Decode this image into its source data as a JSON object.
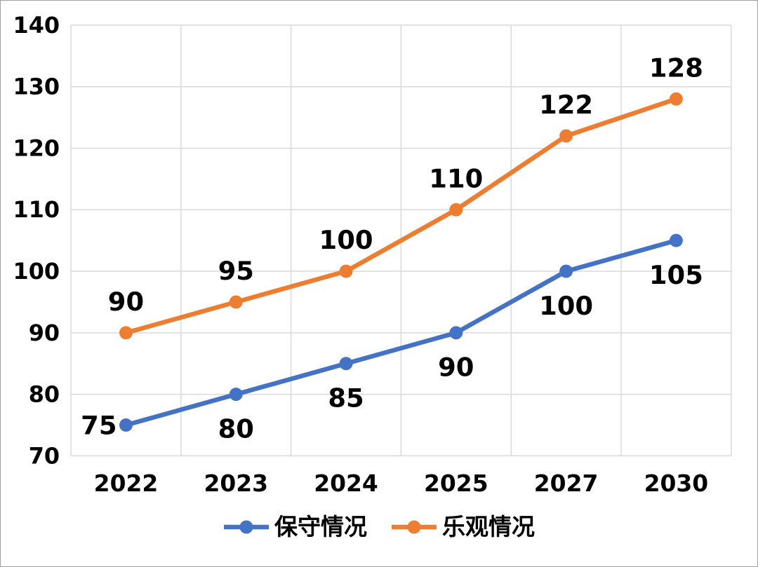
{
  "chart_data": {
    "type": "line",
    "categories": [
      "2022",
      "2023",
      "2024",
      "2025",
      "2027",
      "2030"
    ],
    "series": [
      {
        "name": "保守情况",
        "color": "#4472C4",
        "values": [
          75,
          80,
          85,
          90,
          100,
          105
        ],
        "data_labels": [
          "75",
          "80",
          "85",
          "90",
          "100",
          "105"
        ],
        "label_position": "below",
        "label_overrides": {
          "0": "left"
        }
      },
      {
        "name": "乐观情况",
        "color": "#ED7D31",
        "values": [
          90,
          95,
          100,
          110,
          122,
          128
        ],
        "data_labels": [
          "90",
          "95",
          "100",
          "110",
          "122",
          "128"
        ],
        "label_position": "above",
        "label_overrides": {}
      }
    ],
    "title": "",
    "xlabel": "",
    "ylabel": "",
    "ylim": [
      70,
      140
    ],
    "yticks": [
      70,
      80,
      90,
      100,
      110,
      120,
      130,
      140
    ],
    "ytick_labels": [
      "70",
      "80",
      "90",
      "100",
      "110",
      "120",
      "130",
      "140"
    ],
    "grid": true,
    "legend_position": "bottom",
    "colors": {
      "gridline": "#D9D9D9",
      "axis_text": "#000000",
      "data_label_text": "#000000",
      "background": "#FFFFFF",
      "outer_border": "#9E9E9E"
    }
  }
}
